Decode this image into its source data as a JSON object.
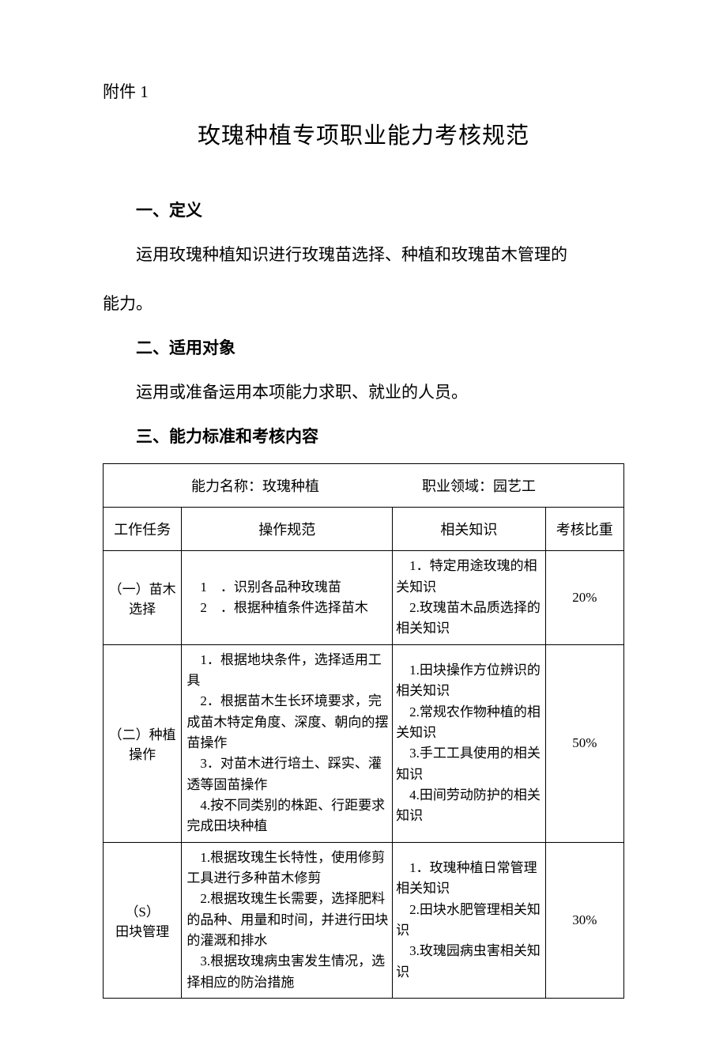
{
  "attachment_label": "附件 1",
  "main_title": "玫瑰种植专项职业能力考核规范",
  "sections": {
    "s1_heading": "一、定义",
    "s1_body_a": "运用玫瑰种植知识进行玫瑰苗选择、种植和玫瑰苗木管理的",
    "s1_body_b": "能力。",
    "s2_heading": "二、适用对象",
    "s2_body": "运用或准备运用本项能力求职、就业的人员。",
    "s3_heading": "三、能力标准和考核内容"
  },
  "table": {
    "title_left": "能力名称：玫瑰种植",
    "title_right": "职业领域：园艺工",
    "columns": {
      "task": "工作任务",
      "ops": "操作规范",
      "knowledge": "相关知识",
      "weight": "考核比重"
    },
    "rows": [
      {
        "task": "（一）苗木选择",
        "ops": "　1　．识别各品种玫瑰苗\n　2　．根据种植条件选择苗木",
        "knowledge": "　1．特定用途玫瑰的相关知识\n　2.玫瑰苗木品质选择的相关知识",
        "weight": "20%"
      },
      {
        "task": "（二）种植操作",
        "ops": "　1．根据地块条件，选择适用工具\n　2．根据苗木生长环境要求，完成苗木特定角度、深度、朝向的摆苗操作\n　3．对苗木进行培土、踩实、灌透等固苗操作\n　4.按不同类别的株距、行距要求完成田块种植",
        "knowledge": "　1.田块操作方位辨识的相关知识\n　2.常规农作物种植的相关知识\n　3.手工工具使用的相关知识\n　4.田间劳动防护的相关知识",
        "weight": "50%"
      },
      {
        "task": "（S）\n田块管理",
        "ops": "　1.根据玫瑰生长特性，使用修剪工具进行多种苗木修剪\n　2.根据玫瑰生长需要，选择肥料的品种、用量和时间，并进行田块的灌溉和排水\n　3.根据玫瑰病虫害发生情况，选择相应的防治措施",
        "knowledge": "　1．玫瑰种植日常管理相关知识\n　2.田块水肥管理相关知识\n　3.玫瑰园病虫害相关知识",
        "weight": "30%"
      }
    ]
  }
}
